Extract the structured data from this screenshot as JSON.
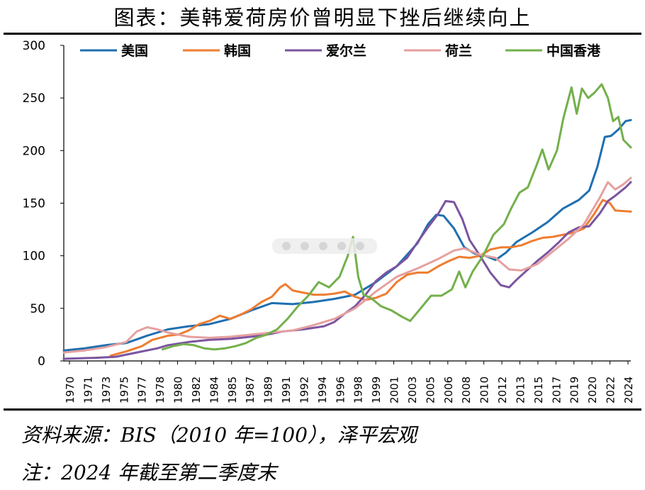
{
  "title": "图表：美韩爱荷房价曾明显下挫后继续向上",
  "source": "资料来源：BIS（2010 年=100），泽平宏观",
  "note": "注：2024 年截至第二季度末",
  "chart_data": {
    "type": "line",
    "ylim": [
      0,
      300
    ],
    "yticks": [
      0,
      50,
      100,
      150,
      200,
      250,
      300
    ],
    "xlim": [
      1970,
      2024.5
    ],
    "xtick_labels": [
      "1970",
      "1971",
      "1973",
      "1975",
      "1977",
      "1978",
      "1980",
      "1982",
      "1984",
      "1985",
      "1987",
      "1989",
      "1991",
      "1992",
      "1994",
      "1996",
      "1998",
      "1999",
      "2001",
      "2003",
      "2005",
      "2006",
      "2008",
      "2010",
      "2012",
      "2013",
      "2015",
      "2017",
      "2019",
      "2020",
      "2022",
      "2024"
    ],
    "grid": false,
    "legend_position": "top",
    "series": [
      {
        "name": "美国",
        "color": "#1f6fb0",
        "points": [
          [
            1970,
            10
          ],
          [
            1972,
            12
          ],
          [
            1974,
            15
          ],
          [
            1976,
            17
          ],
          [
            1978,
            24
          ],
          [
            1980,
            30
          ],
          [
            1982,
            33
          ],
          [
            1984,
            35
          ],
          [
            1986,
            40
          ],
          [
            1988,
            48
          ],
          [
            1990,
            55
          ],
          [
            1992,
            54
          ],
          [
            1994,
            56
          ],
          [
            1996,
            59
          ],
          [
            1998,
            63
          ],
          [
            2000,
            75
          ],
          [
            2002,
            90
          ],
          [
            2004,
            112
          ],
          [
            2005,
            130
          ],
          [
            2005.8,
            139
          ],
          [
            2006.5,
            138
          ],
          [
            2007.5,
            126
          ],
          [
            2008.5,
            108
          ],
          [
            2009.5,
            102
          ],
          [
            2010.5,
            100
          ],
          [
            2011.5,
            96
          ],
          [
            2012.5,
            103
          ],
          [
            2013.5,
            113
          ],
          [
            2015,
            122
          ],
          [
            2016.5,
            132
          ],
          [
            2018,
            145
          ],
          [
            2019.5,
            153
          ],
          [
            2020.5,
            162
          ],
          [
            2021.3,
            185
          ],
          [
            2022,
            213
          ],
          [
            2022.6,
            214
          ],
          [
            2023.3,
            220
          ],
          [
            2024,
            228
          ],
          [
            2024.5,
            229
          ]
        ]
      },
      {
        "name": "韩国",
        "color": "#ee7d31",
        "points": [
          [
            1974.5,
            5
          ],
          [
            1976,
            9
          ],
          [
            1977.5,
            14
          ],
          [
            1978.5,
            20
          ],
          [
            1980,
            24
          ],
          [
            1981,
            25
          ],
          [
            1982,
            29
          ],
          [
            1983,
            35
          ],
          [
            1984,
            38
          ],
          [
            1985,
            43
          ],
          [
            1986,
            40
          ],
          [
            1987,
            44
          ],
          [
            1988,
            49
          ],
          [
            1989,
            56
          ],
          [
            1990,
            61
          ],
          [
            1990.8,
            70
          ],
          [
            1991.3,
            73
          ],
          [
            1992,
            67
          ],
          [
            1993,
            65
          ],
          [
            1994,
            63
          ],
          [
            1995,
            63
          ],
          [
            1996,
            64
          ],
          [
            1997,
            66
          ],
          [
            1998,
            61
          ],
          [
            1999,
            58
          ],
          [
            2000,
            60
          ],
          [
            2001,
            64
          ],
          [
            2002,
            75
          ],
          [
            2003,
            82
          ],
          [
            2004,
            84
          ],
          [
            2005,
            84
          ],
          [
            2006,
            90
          ],
          [
            2007,
            95
          ],
          [
            2008,
            99
          ],
          [
            2009,
            98
          ],
          [
            2010,
            100
          ],
          [
            2011,
            106
          ],
          [
            2012,
            108
          ],
          [
            2013,
            108
          ],
          [
            2014,
            110
          ],
          [
            2015,
            114
          ],
          [
            2016,
            117
          ],
          [
            2017,
            118
          ],
          [
            2018,
            120
          ],
          [
            2019,
            122
          ],
          [
            2020,
            126
          ],
          [
            2021,
            140
          ],
          [
            2021.8,
            153
          ],
          [
            2022.5,
            150
          ],
          [
            2023,
            143
          ],
          [
            2024.5,
            142
          ]
        ]
      },
      {
        "name": "爱尔兰",
        "color": "#7b54a0",
        "points": [
          [
            1970,
            2
          ],
          [
            1973,
            3
          ],
          [
            1975,
            4
          ],
          [
            1977,
            8
          ],
          [
            1979,
            12
          ],
          [
            1980,
            15
          ],
          [
            1982,
            18
          ],
          [
            1984,
            20
          ],
          [
            1986,
            21
          ],
          [
            1988,
            23
          ],
          [
            1989.5,
            25
          ],
          [
            1991,
            28
          ],
          [
            1993,
            30
          ],
          [
            1995,
            33
          ],
          [
            1996,
            37
          ],
          [
            1997,
            45
          ],
          [
            1998,
            52
          ],
          [
            1999,
            63
          ],
          [
            2000,
            76
          ],
          [
            2001,
            84
          ],
          [
            2002,
            90
          ],
          [
            2003,
            98
          ],
          [
            2004,
            113
          ],
          [
            2005,
            127
          ],
          [
            2006,
            140
          ],
          [
            2006.7,
            152
          ],
          [
            2007.5,
            151
          ],
          [
            2008.3,
            135
          ],
          [
            2009,
            115
          ],
          [
            2010,
            100
          ],
          [
            2011,
            84
          ],
          [
            2012,
            72
          ],
          [
            2012.8,
            70
          ],
          [
            2013.5,
            77
          ],
          [
            2014.5,
            86
          ],
          [
            2015.5,
            95
          ],
          [
            2016.5,
            103
          ],
          [
            2017.5,
            112
          ],
          [
            2018.5,
            122
          ],
          [
            2019.5,
            127
          ],
          [
            2020.5,
            128
          ],
          [
            2021.5,
            140
          ],
          [
            2022.3,
            152
          ],
          [
            2023,
            157
          ],
          [
            2024,
            165
          ],
          [
            2024.5,
            170
          ]
        ]
      },
      {
        "name": "荷兰",
        "color": "#e5a0a0",
        "points": [
          [
            1970,
            8
          ],
          [
            1972,
            10
          ],
          [
            1974,
            13
          ],
          [
            1976,
            18
          ],
          [
            1977,
            28
          ],
          [
            1978,
            32
          ],
          [
            1979,
            30
          ],
          [
            1980,
            27
          ],
          [
            1982,
            23
          ],
          [
            1984,
            22
          ],
          [
            1986,
            23
          ],
          [
            1988,
            25
          ],
          [
            1990,
            27
          ],
          [
            1992,
            29
          ],
          [
            1994,
            34
          ],
          [
            1996,
            40
          ],
          [
            1998,
            50
          ],
          [
            2000,
            66
          ],
          [
            2002,
            80
          ],
          [
            2004,
            88
          ],
          [
            2006,
            97
          ],
          [
            2007.5,
            105
          ],
          [
            2008.5,
            107
          ],
          [
            2010,
            101
          ],
          [
            2011.5,
            98
          ],
          [
            2012.8,
            87
          ],
          [
            2014,
            86
          ],
          [
            2015.5,
            92
          ],
          [
            2017,
            104
          ],
          [
            2018.5,
            116
          ],
          [
            2020,
            130
          ],
          [
            2021.5,
            155
          ],
          [
            2022.3,
            170
          ],
          [
            2023,
            163
          ],
          [
            2023.8,
            168
          ],
          [
            2024.5,
            174
          ]
        ]
      },
      {
        "name": "中国香港",
        "color": "#73b04b",
        "points": [
          [
            1979.5,
            11
          ],
          [
            1980.5,
            14
          ],
          [
            1981.5,
            16
          ],
          [
            1982.5,
            15
          ],
          [
            1983.5,
            12
          ],
          [
            1984.5,
            11
          ],
          [
            1985.5,
            12
          ],
          [
            1986.5,
            14
          ],
          [
            1987.5,
            17
          ],
          [
            1988.5,
            22
          ],
          [
            1989.5,
            25
          ],
          [
            1990.5,
            30
          ],
          [
            1991.5,
            40
          ],
          [
            1992.5,
            52
          ],
          [
            1993.5,
            62
          ],
          [
            1994.5,
            75
          ],
          [
            1995.5,
            70
          ],
          [
            1996.5,
            80
          ],
          [
            1997.3,
            100
          ],
          [
            1997.8,
            118
          ],
          [
            1998.3,
            80
          ],
          [
            1998.8,
            63
          ],
          [
            1999.5,
            60
          ],
          [
            2000.5,
            52
          ],
          [
            2001.5,
            48
          ],
          [
            2002.5,
            42
          ],
          [
            2003.3,
            38
          ],
          [
            2004.3,
            50
          ],
          [
            2005.3,
            62
          ],
          [
            2006.3,
            62
          ],
          [
            2007.3,
            68
          ],
          [
            2008,
            85
          ],
          [
            2008.6,
            70
          ],
          [
            2009.3,
            85
          ],
          [
            2010.3,
            100
          ],
          [
            2011.3,
            120
          ],
          [
            2012.3,
            130
          ],
          [
            2013,
            145
          ],
          [
            2013.8,
            160
          ],
          [
            2014.6,
            165
          ],
          [
            2015.4,
            185
          ],
          [
            2016,
            201
          ],
          [
            2016.6,
            182
          ],
          [
            2017.4,
            200
          ],
          [
            2018,
            230
          ],
          [
            2018.8,
            260
          ],
          [
            2019.3,
            235
          ],
          [
            2019.8,
            259
          ],
          [
            2020.4,
            250
          ],
          [
            2021,
            255
          ],
          [
            2021.7,
            263
          ],
          [
            2022.3,
            250
          ],
          [
            2022.8,
            228
          ],
          [
            2023.3,
            232
          ],
          [
            2023.8,
            210
          ],
          [
            2024.5,
            203
          ]
        ]
      }
    ]
  }
}
